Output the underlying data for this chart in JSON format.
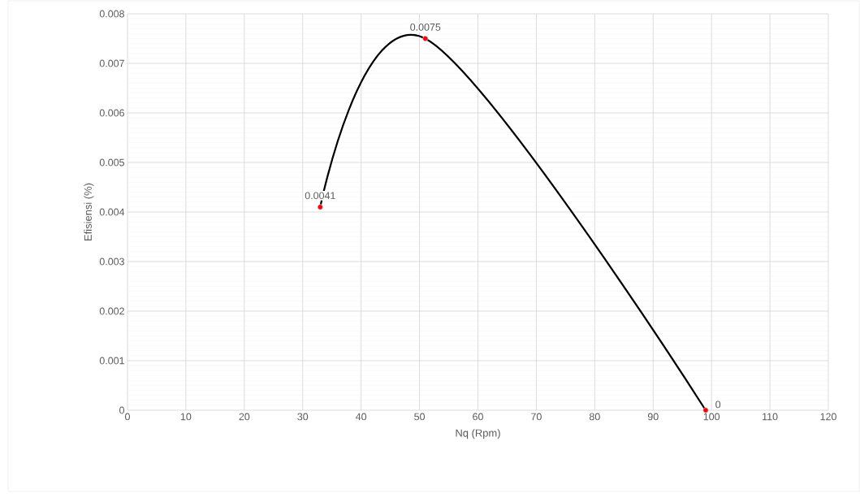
{
  "chart_data": {
    "type": "line",
    "xlabel": "Nq (Rpm)",
    "ylabel": "Efisiensi (%)",
    "x": [
      33,
      51,
      99
    ],
    "series": [
      {
        "color": "#000000",
        "values": [
          0.0041,
          0.0075,
          0
        ],
        "value_labels": [
          "0.0041",
          "0.0075",
          "0"
        ],
        "colors": [
          "#ff0000",
          "#ff0000",
          "#ff0000"
        ]
      }
    ],
    "xlim": [
      0,
      120
    ],
    "xticks": [
      0,
      10,
      20,
      30,
      40,
      50,
      60,
      70,
      80,
      90,
      100,
      110,
      120
    ],
    "ylim": [
      0,
      0.008
    ],
    "yticks": [
      0,
      0.001,
      0.002,
      0.003,
      0.004,
      0.005,
      0.006,
      0.007,
      0.008
    ],
    "grid": true,
    "marker": "circle",
    "line_style": "solid"
  }
}
